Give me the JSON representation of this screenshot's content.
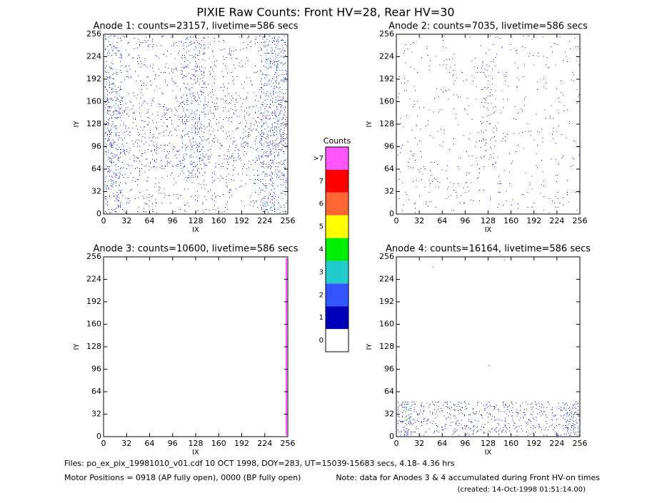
{
  "title": "PIXIE Raw Counts:  Front HV=28, Rear HV=30",
  "chart_data": [
    {
      "type": "heatmap",
      "title": "Anode 1: counts=23157, livetime=586 secs",
      "xlabel": "IX",
      "ylabel": "IY",
      "xlim": [
        0,
        256
      ],
      "ylim": [
        0,
        256
      ],
      "xticks": [
        0,
        32,
        64,
        96,
        128,
        160,
        192,
        224,
        256
      ],
      "yticks": [
        0,
        32,
        64,
        96,
        128,
        160,
        192,
        224,
        256
      ]
    },
    {
      "type": "heatmap",
      "title": "Anode 2: counts=7035, livetime=586 secs",
      "xlabel": "IX",
      "ylabel": "IY",
      "xlim": [
        0,
        256
      ],
      "ylim": [
        0,
        256
      ],
      "xticks": [
        0,
        32,
        64,
        96,
        128,
        160,
        192,
        224,
        256
      ],
      "yticks": [
        0,
        32,
        64,
        96,
        128,
        160,
        192,
        224,
        256
      ]
    },
    {
      "type": "heatmap",
      "title": "Anode 3: counts=10600, livetime=586 secs",
      "xlabel": "IX",
      "ylabel": "IY",
      "xlim": [
        0,
        256
      ],
      "ylim": [
        0,
        256
      ],
      "xticks": [
        0,
        32,
        64,
        96,
        128,
        160,
        192,
        224,
        256
      ],
      "yticks": [
        0,
        32,
        64,
        96,
        128,
        160,
        192,
        224,
        256
      ]
    },
    {
      "type": "heatmap",
      "title": "Anode 4: counts=16164, livetime=586 secs",
      "xlabel": "IX",
      "ylabel": "IY",
      "xlim": [
        0,
        256
      ],
      "ylim": [
        0,
        256
      ],
      "xticks": [
        0,
        32,
        64,
        96,
        128,
        160,
        192,
        224,
        256
      ],
      "yticks": [
        0,
        32,
        64,
        96,
        128,
        160,
        192,
        224,
        256
      ]
    }
  ],
  "colorbar": {
    "title": "Counts",
    "levels": [
      {
        "label": "0",
        "color": "#ffffff"
      },
      {
        "label": "1",
        "color": "#0000bb"
      },
      {
        "label": "2",
        "color": "#3355ff"
      },
      {
        "label": "3",
        "color": "#22cccc"
      },
      {
        "label": "4",
        "color": "#00ee00"
      },
      {
        "label": "5",
        "color": "#ffff00"
      },
      {
        "label": "6",
        "color": "#ff6633"
      },
      {
        "label": "7",
        "color": "#ff0000"
      },
      {
        "label": ">7",
        "color": "#ff55ff"
      }
    ]
  },
  "footer": {
    "files": "Files: po_ex_pix_19981010_v01.cdf   10 OCT 1998, DOY=283, UT=15039-15683 secs,  4.18- 4.36 hrs",
    "motor": "Motor Positions = 0918 (AP fully open), 0000 (BP fully open)",
    "note": "Note: data for Anodes 3 & 4 accumulated during Front HV-on times",
    "created": "(created: 14-Oct-1998 01:51:14.00)"
  }
}
